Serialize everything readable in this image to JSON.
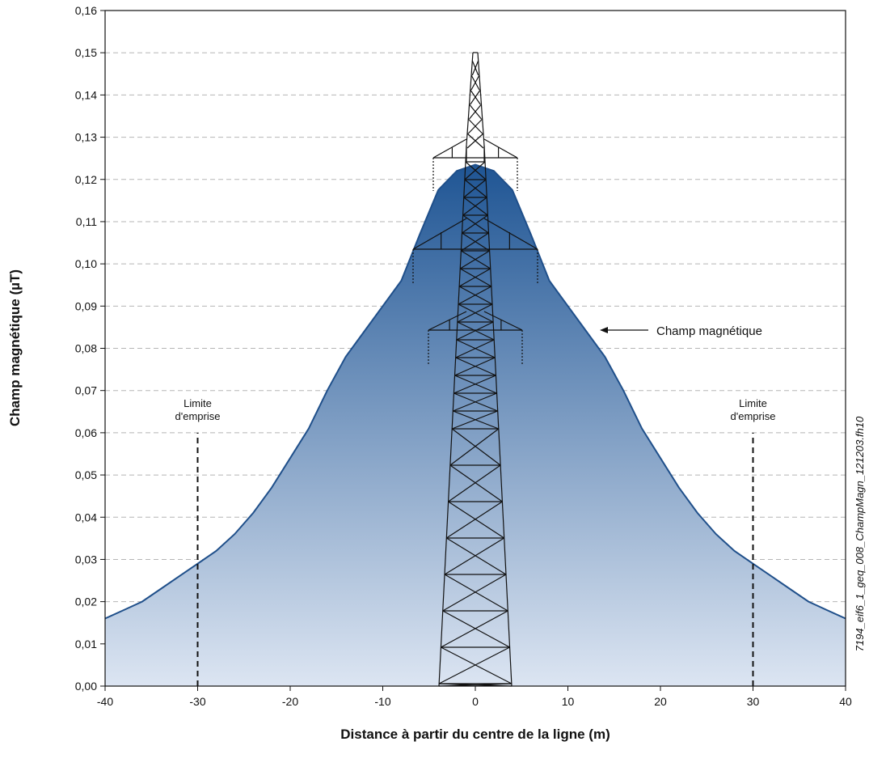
{
  "chart_data": {
    "type": "area",
    "x_label": "Distance à partir du centre de la ligne (m)",
    "y_label": "Champ magnétique (µT)",
    "side_note": "7194_eif6_1_geq_008_ChampMagn_121203.fh10",
    "x": [
      -40,
      -38,
      -36,
      -34,
      -32,
      -30,
      -28,
      -26,
      -24,
      -22,
      -20,
      -18,
      -16,
      -14,
      -12,
      -10,
      -8,
      -6,
      -4,
      -2,
      0,
      2,
      4,
      6,
      8,
      10,
      12,
      14,
      16,
      18,
      20,
      22,
      24,
      26,
      28,
      30,
      32,
      34,
      36,
      38,
      40
    ],
    "values": [
      0.016,
      0.018,
      0.02,
      0.023,
      0.026,
      0.029,
      0.032,
      0.036,
      0.041,
      0.047,
      0.054,
      0.061,
      0.07,
      0.078,
      0.084,
      0.09,
      0.096,
      0.107,
      0.1175,
      0.122,
      0.1235,
      0.122,
      0.1175,
      0.107,
      0.096,
      0.09,
      0.084,
      0.078,
      0.07,
      0.061,
      0.054,
      0.047,
      0.041,
      0.036,
      0.032,
      0.029,
      0.026,
      0.023,
      0.02,
      0.018,
      0.016
    ],
    "color": "#1f4f8a",
    "xlim": [
      -40,
      40
    ],
    "ylim": [
      0,
      0.16
    ],
    "xticks": [
      -40,
      -30,
      -20,
      -10,
      0,
      10,
      20,
      30,
      40
    ],
    "yticks": [
      {
        "value": 0,
        "label": "0,00"
      },
      {
        "value": 0.01,
        "label": "0,01"
      },
      {
        "value": 0.02,
        "label": "0,02"
      },
      {
        "value": 0.03,
        "label": "0,03"
      },
      {
        "value": 0.04,
        "label": "0,04"
      },
      {
        "value": 0.05,
        "label": "0,05"
      },
      {
        "value": 0.06,
        "label": "0,06"
      },
      {
        "value": 0.07,
        "label": "0,07"
      },
      {
        "value": 0.08,
        "label": "0,08"
      },
      {
        "value": 0.09,
        "label": "0,09"
      },
      {
        "value": 0.1,
        "label": "0,10"
      },
      {
        "value": 0.11,
        "label": "0,11"
      },
      {
        "value": 0.12,
        "label": "0,12"
      },
      {
        "value": 0.13,
        "label": "0,13"
      },
      {
        "value": 0.14,
        "label": "0,14"
      },
      {
        "value": 0.15,
        "label": "0,15"
      },
      {
        "value": 0.16,
        "label": "0,16"
      }
    ],
    "grid": true,
    "curve_label": "Champ magnétique",
    "limit_lines": [
      {
        "x": -30,
        "range": [
          0,
          0.06
        ],
        "label": [
          "Limite",
          "d'emprise"
        ]
      },
      {
        "x": 30,
        "range": [
          0,
          0.06
        ],
        "label": [
          "Limite",
          "d'emprise"
        ]
      }
    ]
  }
}
